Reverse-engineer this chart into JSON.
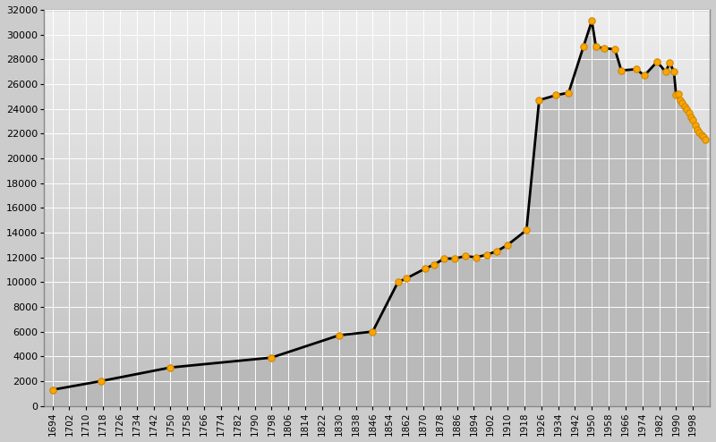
{
  "years": [
    1694,
    1717,
    1750,
    1798,
    1830,
    1846,
    1858,
    1862,
    1871,
    1875,
    1880,
    1885,
    1890,
    1895,
    1900,
    1905,
    1910,
    1919,
    1925,
    1933,
    1939,
    1946,
    1950,
    1952,
    1956,
    1961,
    1964,
    1971,
    1975,
    1981,
    1985,
    1987,
    1989,
    1990,
    1991,
    1992,
    1993,
    1994,
    1995,
    1996,
    1997,
    1998,
    1999,
    2000,
    2001,
    2002,
    2003,
    2004
  ],
  "population": [
    1300,
    2000,
    3100,
    3900,
    5700,
    6000,
    10000,
    10300,
    11100,
    11400,
    11900,
    11900,
    12100,
    12000,
    12200,
    12500,
    13000,
    14200,
    24700,
    25100,
    25300,
    29000,
    31100,
    29000,
    28900,
    28800,
    27100,
    27200,
    26700,
    27800,
    27000,
    27700,
    27000,
    25100,
    25200,
    24700,
    24500,
    24200,
    24000,
    23700,
    23300,
    23100,
    22700,
    22300,
    22100,
    21900,
    21700,
    21500
  ],
  "xtick_years": [
    1694,
    1702,
    1710,
    1718,
    1726,
    1734,
    1742,
    1750,
    1758,
    1766,
    1774,
    1782,
    1790,
    1798,
    1806,
    1814,
    1822,
    1830,
    1838,
    1846,
    1854,
    1862,
    1870,
    1878,
    1886,
    1894,
    1902,
    1910,
    1918,
    1926,
    1934,
    1942,
    1950,
    1958,
    1966,
    1974,
    1982,
    1990,
    1998
  ],
  "ytick_values": [
    0,
    2000,
    4000,
    6000,
    8000,
    10000,
    12000,
    14000,
    16000,
    18000,
    20000,
    22000,
    24000,
    26000,
    28000,
    30000,
    32000
  ],
  "line_color": "#000000",
  "fill_color_top": "#c8c8c8",
  "fill_color_bottom": "#b0b0b0",
  "marker_color": "#FFA500",
  "marker_edge_color": "#cc8800",
  "background_color": "#cccccc",
  "plot_bg_top": "#e8e8e8",
  "plot_bg_bottom": "#bbbbbb",
  "border_color": "#888888",
  "grid_color": "#ffffff",
  "ylim": [
    0,
    32000
  ],
  "xlim_min": 1690,
  "xlim_max": 2006,
  "figwidth": 8.0,
  "figheight": 4.94,
  "dpi": 100
}
